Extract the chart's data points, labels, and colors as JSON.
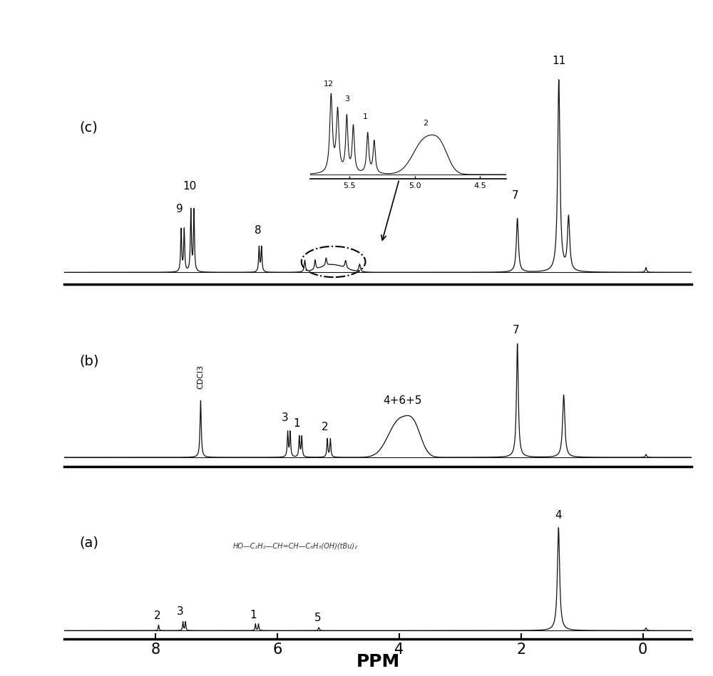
{
  "xlabel": "PPM",
  "xlabel_fontsize": 18,
  "xlabel_fontweight": "bold",
  "xlim": [
    9.5,
    -0.8
  ],
  "background_color": "#ffffff",
  "tick_positions": [
    8,
    6,
    4,
    2,
    0
  ],
  "tick_labels": [
    "8",
    "6",
    "4",
    "2",
    "0"
  ],
  "line_color": "#111111",
  "line_width": 0.9
}
